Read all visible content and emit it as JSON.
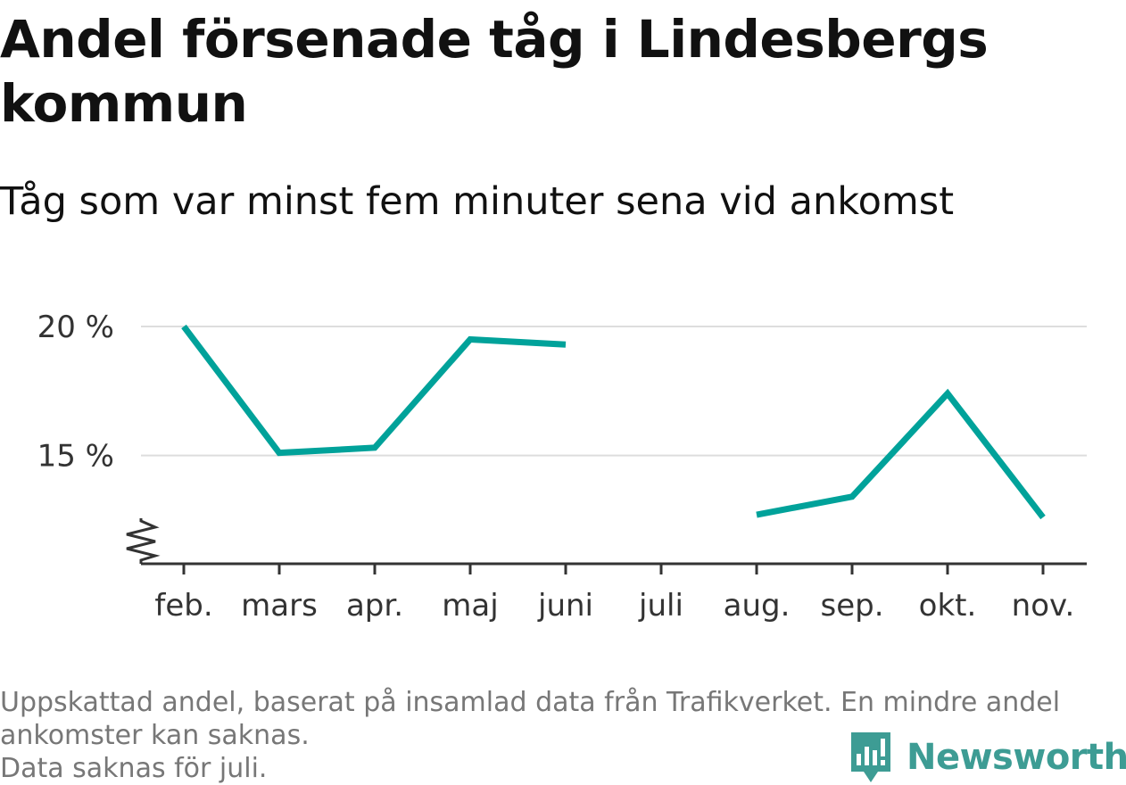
{
  "header": {
    "title": "Andel försenade tåg i Lindesbergs kommun",
    "subtitle": "Tåg som var minst fem minuter sena vid ankomst"
  },
  "chart_data": {
    "type": "line",
    "categories": [
      "feb.",
      "mars",
      "apr.",
      "maj",
      "juni",
      "juli",
      "aug.",
      "sep.",
      "okt.",
      "nov."
    ],
    "series": [
      {
        "values": [
          20.0,
          15.1,
          15.3,
          19.5,
          19.3,
          null,
          12.7,
          13.4,
          17.4,
          12.6
        ],
        "color": "#00a29a"
      }
    ],
    "yticks": [
      15,
      20
    ],
    "ytick_labels": [
      "15 %",
      "20 %"
    ],
    "ylim": [
      10.8,
      20.0
    ],
    "y_axis_break": true,
    "grid": true,
    "legend": "none",
    "xlabel": "",
    "ylabel": ""
  },
  "footer": {
    "note_lines": [
      "Uppskattad andel, baserat på insamlad data från Trafikverket. En mindre andel",
      "ankomster kan saknas.",
      "Data saknas för juli."
    ],
    "brand": "Newsworthy",
    "brand_icon": "newsworthy-logo-icon",
    "brand_color": "#3d9c94"
  }
}
